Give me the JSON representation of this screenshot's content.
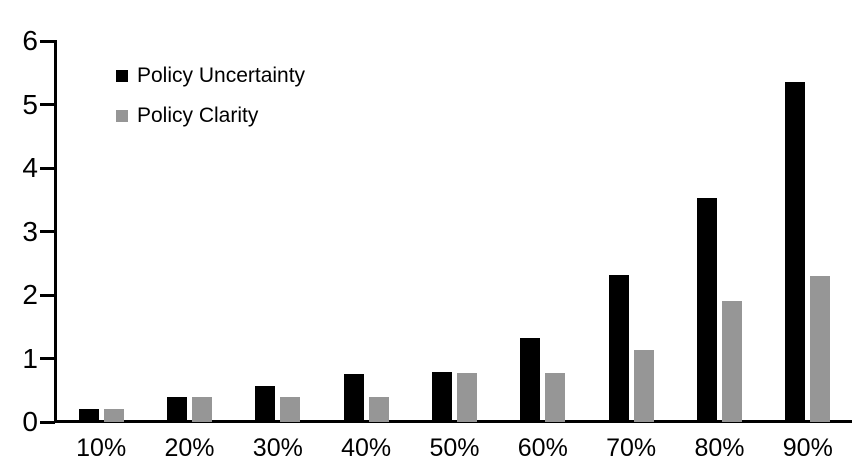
{
  "chart_data": {
    "type": "bar",
    "categories": [
      "10%",
      "20%",
      "30%",
      "40%",
      "50%",
      "60%",
      "70%",
      "80%",
      "90%"
    ],
    "series": [
      {
        "name": "Policy Uncertainty",
        "color": "#000000",
        "values": [
          0.2,
          0.4,
          0.57,
          0.75,
          0.78,
          1.33,
          2.32,
          3.52,
          5.35
        ]
      },
      {
        "name": "Policy Clarity",
        "color": "#969696",
        "values": [
          0.2,
          0.4,
          0.4,
          0.4,
          0.77,
          0.77,
          1.13,
          1.9,
          2.3
        ]
      }
    ],
    "title": "",
    "xlabel": "",
    "ylabel": "",
    "ylim": [
      0,
      6
    ],
    "yticks": [
      0,
      1,
      2,
      3,
      4,
      5,
      6
    ],
    "grid": false,
    "legend_position": "top-left",
    "axis_color": "#000000",
    "background": "#ffffff"
  }
}
